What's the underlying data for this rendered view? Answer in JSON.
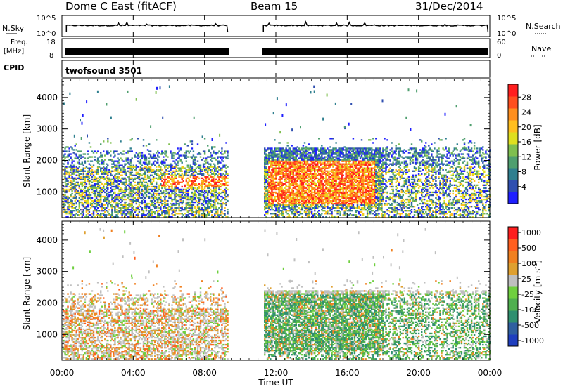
{
  "header": {
    "station": "Dome C East (fitACF)",
    "beam": "Beam 15",
    "date": "31/Dec/2014"
  },
  "status_panels": {
    "nsky_label": "N.Sky",
    "nsky_ticks": [
      "10^5",
      "10^0"
    ],
    "nsearch_label": "N.Search",
    "nsearch_ticks": [
      "10^5",
      "10^0"
    ],
    "freq_label": "Freq.",
    "freq_unit": "[MHz]",
    "freq_ticks": [
      "18",
      "8"
    ],
    "nave_label": "Nave",
    "nave_ticks": [
      "60",
      "0"
    ],
    "cpid_label": "CPID",
    "cpid_value": "twofsound 3501"
  },
  "time_axis": {
    "label": "Time UT",
    "ticks": [
      "00:00",
      "04:00",
      "08:00",
      "12:00",
      "16:00",
      "20:00",
      "00:00"
    ],
    "data_gap_hours": [
      9.3,
      11.3
    ]
  },
  "chart_data": [
    {
      "type": "heatmap",
      "quantity": "power",
      "ylabel": "Slant Range [km]",
      "y_ticks": [
        "1000",
        "2000",
        "3000",
        "4000"
      ],
      "ylim": [
        180,
        4600
      ],
      "xlim_hours": [
        0,
        24
      ],
      "colorbar": {
        "label": "Power [dB]",
        "ticks": [
          "4",
          "8",
          "12",
          "16",
          "20",
          "24",
          "28"
        ],
        "colors": [
          "#1f1fff",
          "#2f4fb0",
          "#2f7f8f",
          "#4f9f6f",
          "#7fbf4f",
          "#dfdf1f",
          "#ffbf1f",
          "#ff8f1f",
          "#ff4f1f",
          "#ff1f1f"
        ]
      }
    },
    {
      "type": "heatmap",
      "quantity": "velocity",
      "ylabel": "Slant Range [km]",
      "y_ticks": [
        "1000",
        "2000",
        "3000",
        "4000"
      ],
      "ylim": [
        180,
        4600
      ],
      "xlim_hours": [
        0,
        24
      ],
      "colorbar": {
        "label": "Velocity [m s",
        "label_sup": "-1",
        "label_end": "]",
        "ticks": [
          "1000",
          "500",
          "100",
          "25",
          "-25",
          "-100",
          "-500",
          "-1000"
        ],
        "colors": [
          "#1f3fbf",
          "#2f5fa0",
          "#2f8f6f",
          "#4faf4f",
          "#6fcf3f",
          "#bfbfbf",
          "#dfa030",
          "#f08020",
          "#ff5f1f",
          "#ff1f1f"
        ]
      }
    }
  ]
}
